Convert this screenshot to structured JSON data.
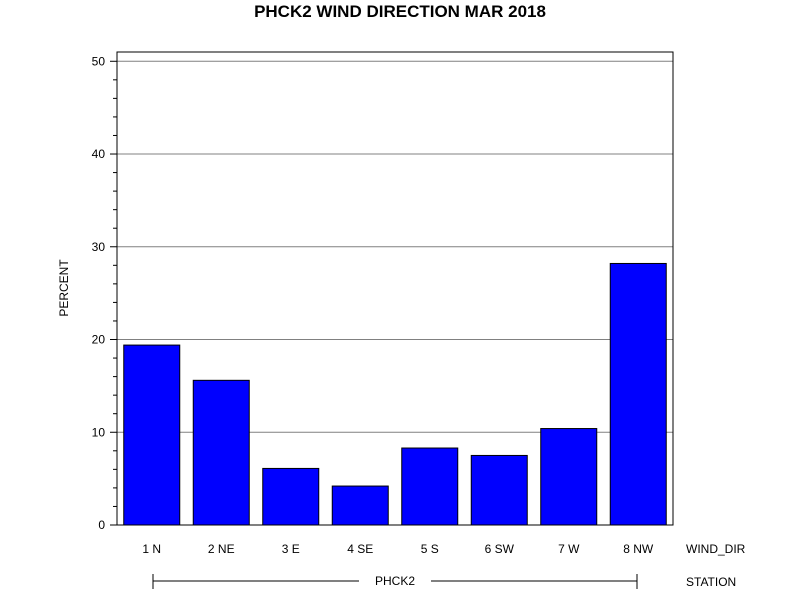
{
  "chart_data": {
    "type": "bar",
    "title": "PHCK2 WIND DIRECTION MAR 2018",
    "ylabel": "PERCENT",
    "xlabel": "WIND_DIR",
    "group_label": "STATION",
    "group_value": "PHCK2",
    "categories": [
      "1 N",
      "2 NE",
      "3 E",
      "4 SE",
      "5 S",
      "6 SW",
      "7 W",
      "8 NW"
    ],
    "values": [
      19.4,
      15.6,
      6.1,
      4.2,
      8.3,
      7.5,
      10.4,
      28.2
    ],
    "ylim": [
      0,
      51
    ],
    "yticks": [
      "0",
      "10",
      "20",
      "30",
      "40",
      "50"
    ],
    "grid": true,
    "bar_color": "#0000ff"
  }
}
